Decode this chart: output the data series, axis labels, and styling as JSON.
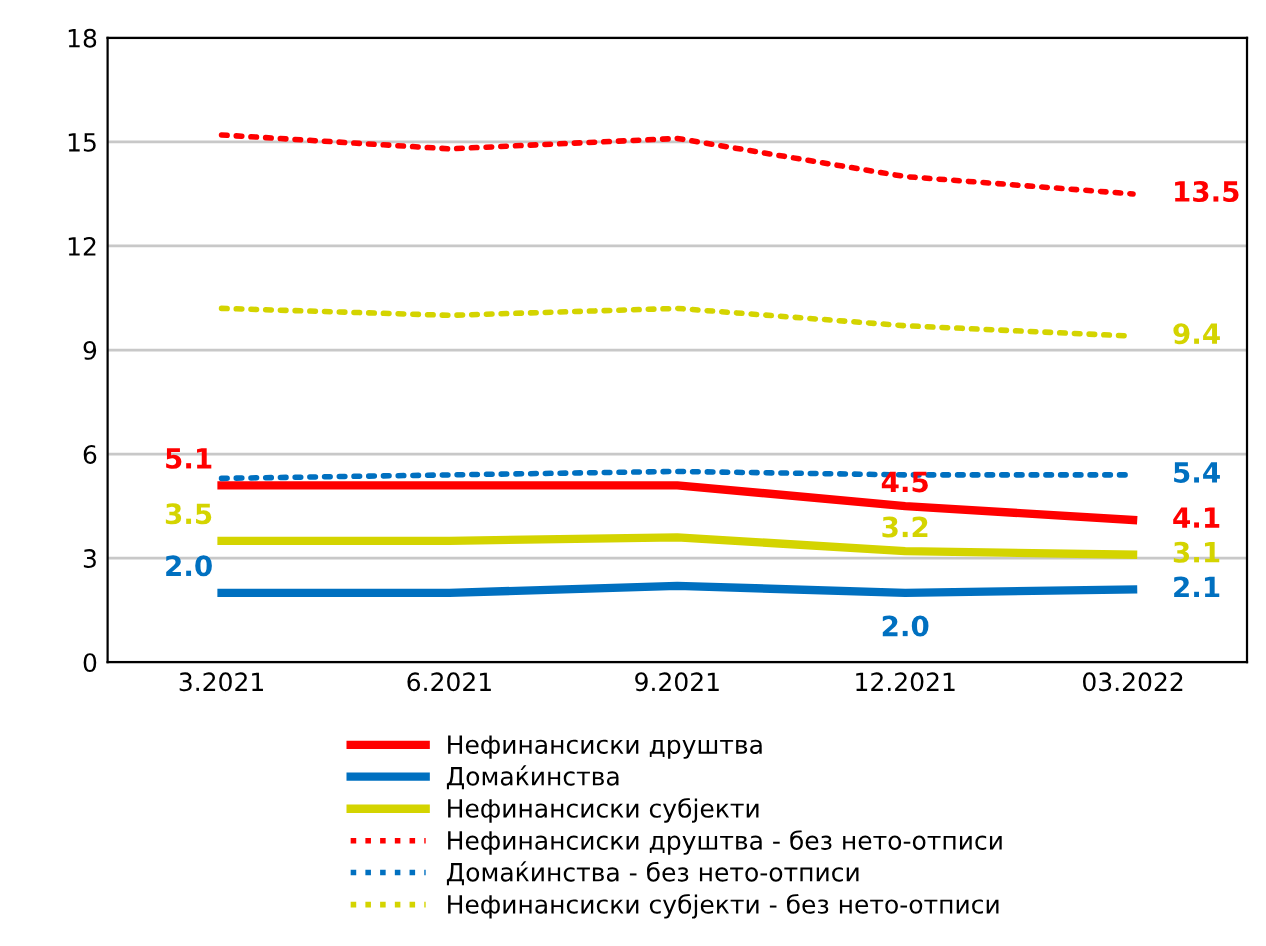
{
  "chart_data": {
    "type": "line",
    "categories": [
      "3.2021",
      "6.2021",
      "9.2021",
      "12.2021",
      "03.2022"
    ],
    "ylim": [
      0,
      18
    ],
    "yticks": [
      0,
      3,
      6,
      9,
      12,
      15,
      18
    ],
    "grid": "y",
    "legend": "bottom",
    "marker": "none",
    "series": [
      {
        "name": "Нефинансиски друштва",
        "color": "#ff0000",
        "line_style": "solid",
        "values": [
          5.1,
          5.1,
          5.1,
          4.5,
          4.1
        ],
        "value_labels": [
          "5.1",
          null,
          null,
          "4.5",
          "4.1"
        ]
      },
      {
        "name": "Домаќинства",
        "color": "#0070c0",
        "line_style": "solid",
        "values": [
          2.0,
          2.0,
          2.2,
          2.0,
          2.1
        ],
        "value_labels": [
          "2.0",
          null,
          null,
          "2.0",
          "2.1"
        ]
      },
      {
        "name": "Нефинансиски субјекти",
        "color": "#d4d400",
        "line_style": "solid",
        "values": [
          3.5,
          3.5,
          3.6,
          3.2,
          3.1
        ],
        "value_labels": [
          "3.5",
          null,
          null,
          "3.2",
          "3.1"
        ]
      },
      {
        "name": "Нефинансиски друштва - без нето-отписи",
        "color": "#ff0000",
        "line_style": "dotted",
        "values": [
          15.2,
          14.8,
          15.1,
          14.0,
          13.5
        ],
        "value_labels": [
          null,
          null,
          null,
          null,
          "13.5"
        ]
      },
      {
        "name": "Домаќинства - без нето-отписи",
        "color": "#0070c0",
        "line_style": "dotted",
        "values": [
          5.3,
          5.4,
          5.5,
          5.4,
          5.4
        ],
        "value_labels": [
          null,
          null,
          null,
          null,
          "5.4"
        ]
      },
      {
        "name": "Нефинансиски субјекти - без нето-отписи",
        "color": "#d4d400",
        "line_style": "dotted",
        "values": [
          10.2,
          10.0,
          10.2,
          9.7,
          9.4
        ],
        "value_labels": [
          null,
          null,
          null,
          null,
          "9.4"
        ]
      }
    ]
  }
}
